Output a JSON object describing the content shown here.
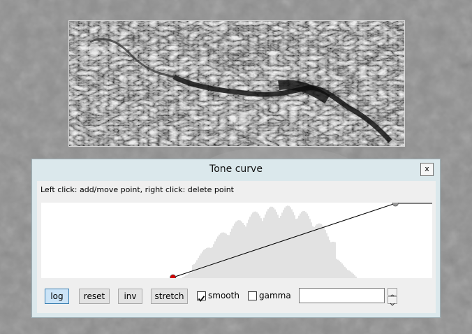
{
  "window": {
    "title": "Tone curve",
    "close_glyph": "x"
  },
  "hint": "Left click: add/move point, right click: delete point",
  "buttons": {
    "log": "log",
    "reset": "reset",
    "inv": "inv",
    "stretch": "stretch"
  },
  "options": {
    "smooth_label": "smooth",
    "smooth_checked": true,
    "gamma_label": "gamma",
    "gamma_checked": false
  },
  "gamma_value": "",
  "curve": {
    "points": [
      {
        "in": 0.337,
        "out": 0.0,
        "color": "#d40000"
      },
      {
        "in": 0.906,
        "out": 1.0,
        "color": "#9a9a9a"
      }
    ],
    "line_color": "#000000",
    "histogram_color": "#e2e2e2"
  },
  "colors": {
    "accent": "#cce4f7",
    "dialog_frame": "#dbe8ec"
  }
}
